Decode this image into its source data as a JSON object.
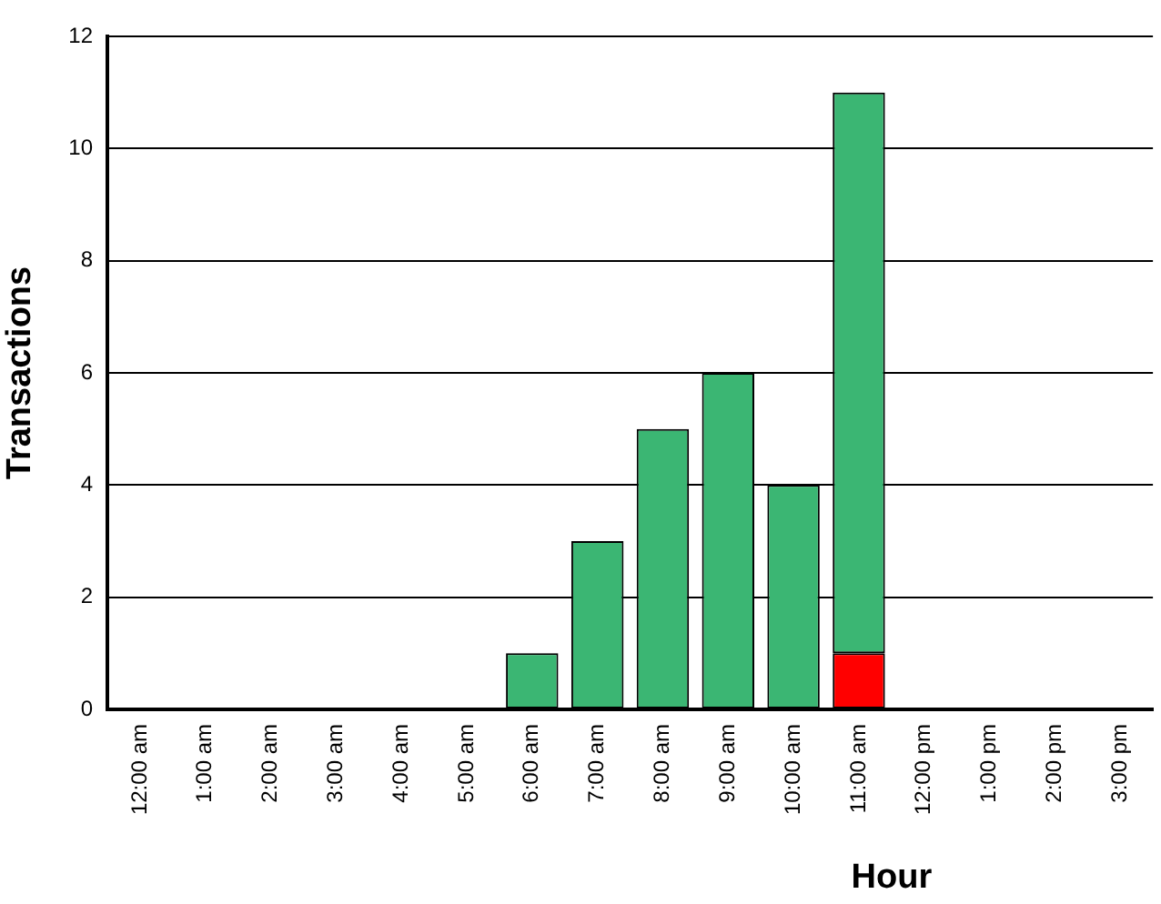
{
  "chart_data": {
    "type": "bar",
    "stacked": true,
    "xlabel": "Hour",
    "ylabel": "Transactions",
    "categories": [
      "12:00 am",
      "1:00 am",
      "2:00 am",
      "3:00 am",
      "4:00 am",
      "5:00 am",
      "6:00 am",
      "7:00 am",
      "8:00 am",
      "9:00 am",
      "10:00 am",
      "11:00 am",
      "12:00 pm",
      "1:00 pm",
      "2:00 pm",
      "3:00 pm"
    ],
    "series": [
      {
        "color": "#ff0000",
        "values": [
          0,
          0,
          0,
          0,
          0,
          0,
          0,
          0,
          0,
          0,
          0,
          1,
          0,
          0,
          0,
          0
        ]
      },
      {
        "color": "#3bb673",
        "values": [
          0,
          0,
          0,
          0,
          0,
          0,
          1,
          3,
          5,
          6,
          4,
          10,
          0,
          0,
          0,
          0
        ]
      }
    ],
    "ylim": [
      0,
      12
    ],
    "yticks": [
      0,
      2,
      4,
      6,
      8,
      10,
      12
    ],
    "grid": "y",
    "legend": false
  }
}
